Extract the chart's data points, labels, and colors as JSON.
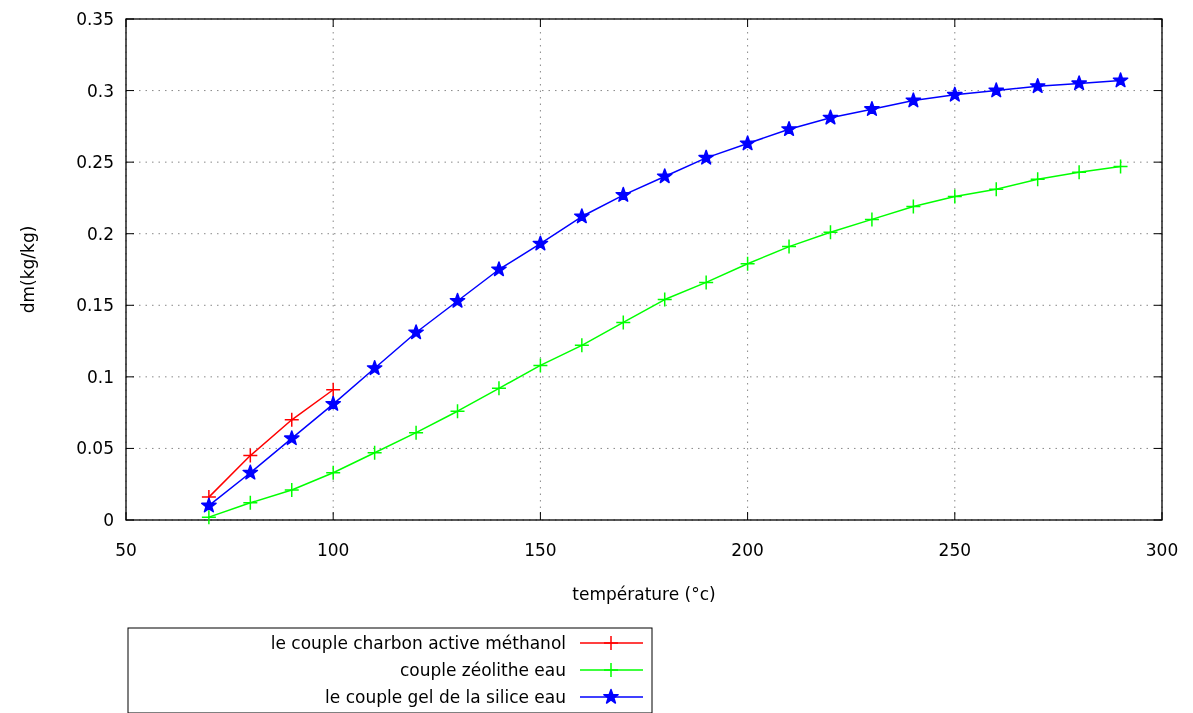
{
  "chart_data": {
    "type": "line",
    "xlabel": "température (°c)",
    "ylabel": "dm(kg/kg)",
    "xlim": [
      50,
      300
    ],
    "xticks": [
      50,
      100,
      150,
      200,
      250,
      300
    ],
    "ylim": [
      0,
      0.35
    ],
    "yticks": [
      0,
      0.05,
      0.1,
      0.15,
      0.2,
      0.25,
      0.3,
      0.35
    ],
    "grid": true,
    "legend": "bottom",
    "series": [
      {
        "name": "le couple charbon active méthanol",
        "color": "#ff0000",
        "marker": "cross",
        "x": [
          70,
          80,
          90,
          100
        ],
        "values": [
          0.016,
          0.045,
          0.07,
          0.091
        ]
      },
      {
        "name": "couple zéolithe eau",
        "color": "#00ff00",
        "marker": "cross",
        "x": [
          70,
          80,
          90,
          100,
          110,
          120,
          130,
          140,
          150,
          160,
          170,
          180,
          190,
          200,
          210,
          220,
          230,
          240,
          250,
          260,
          270,
          280,
          290
        ],
        "values": [
          0.002,
          0.012,
          0.021,
          0.033,
          0.047,
          0.061,
          0.076,
          0.092,
          0.108,
          0.122,
          0.138,
          0.154,
          0.166,
          0.179,
          0.191,
          0.201,
          0.21,
          0.219,
          0.226,
          0.231,
          0.238,
          0.243,
          0.247
        ]
      },
      {
        "name": "le couple gel de la silice eau",
        "color": "#0000ff",
        "marker": "star",
        "x": [
          70,
          80,
          90,
          100,
          110,
          120,
          130,
          140,
          150,
          160,
          170,
          180,
          190,
          200,
          210,
          220,
          230,
          240,
          250,
          260,
          270,
          280,
          290
        ],
        "values": [
          0.01,
          0.033,
          0.057,
          0.081,
          0.106,
          0.131,
          0.153,
          0.175,
          0.193,
          0.212,
          0.227,
          0.24,
          0.253,
          0.263,
          0.273,
          0.281,
          0.287,
          0.293,
          0.297,
          0.3,
          0.303,
          0.305,
          0.307
        ]
      }
    ]
  }
}
